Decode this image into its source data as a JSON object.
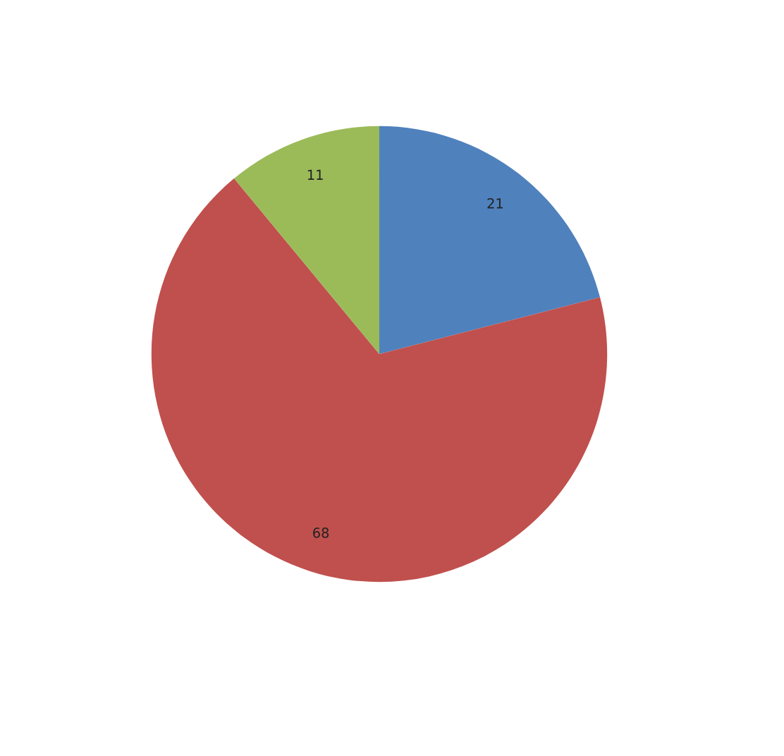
{
  "chart_data": {
    "type": "pie",
    "categories": [
      null,
      null,
      null
    ],
    "values": [
      21,
      68,
      11
    ],
    "colors": [
      "#4f81bd",
      "#c0504d",
      "#9bbb59"
    ],
    "data_labels": true
  }
}
